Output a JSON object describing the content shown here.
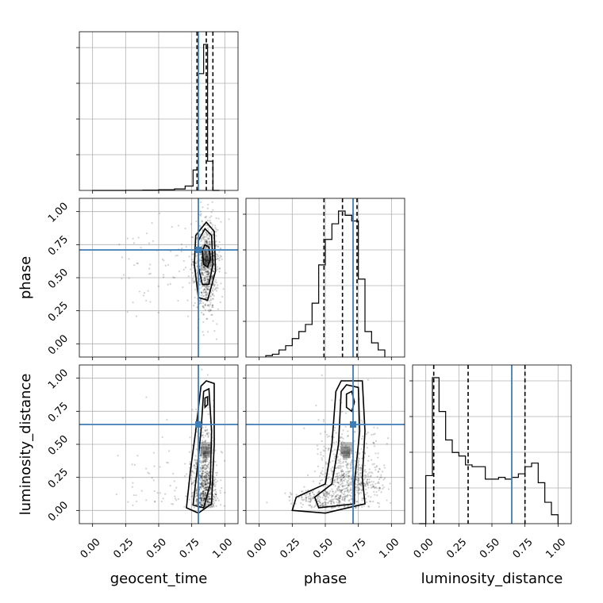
{
  "chart_data": {
    "type": "corner",
    "parameters": [
      "geocent_time",
      "phase",
      "luminosity_distance"
    ],
    "axis_range": [
      -0.1,
      1.1
    ],
    "tick_values": [
      0.0,
      0.25,
      0.5,
      0.75,
      1.0
    ],
    "tick_labels": [
      "0.00",
      "0.25",
      "0.50",
      "0.75",
      "1.00"
    ],
    "truth_color": "#3f7db5",
    "truths": {
      "geocent_time": 0.8,
      "phase": 0.71,
      "luminosity_distance": 0.65
    },
    "quantiles": {
      "geocent_time": [
        0.79,
        0.86,
        0.91
      ],
      "phase": [
        0.49,
        0.63,
        0.74
      ],
      "luminosity_distance": [
        0.06,
        0.32,
        0.75
      ]
    },
    "histograms": {
      "geocent_time": {
        "bin_edges": [
          0.0,
          0.25,
          0.38,
          0.5,
          0.62,
          0.7,
          0.76,
          0.8,
          0.84,
          0.87,
          0.91,
          0.96
        ],
        "counts": [
          0,
          1,
          2,
          5,
          10,
          30,
          140,
          800,
          1000,
          200,
          0
        ]
      },
      "phase": {
        "bin_edges": [
          0.05,
          0.1,
          0.15,
          0.2,
          0.25,
          0.3,
          0.35,
          0.4,
          0.45,
          0.5,
          0.55,
          0.6,
          0.65,
          0.7,
          0.75,
          0.8,
          0.85,
          0.9,
          0.95
        ],
        "counts": [
          1,
          2,
          5,
          8,
          13,
          18,
          23,
          38,
          65,
          83,
          94,
          103,
          100,
          96,
          55,
          18,
          10,
          5
        ]
      },
      "luminosity_distance": {
        "bin_edges": [
          -0.05,
          0.0,
          0.05,
          0.1,
          0.15,
          0.2,
          0.25,
          0.3,
          0.35,
          0.4,
          0.45,
          0.5,
          0.55,
          0.6,
          0.65,
          0.7,
          0.75,
          0.8,
          0.85,
          0.9,
          0.95,
          1.0
        ],
        "counts": [
          0,
          27,
          82,
          63,
          47,
          40,
          38,
          33,
          32,
          32,
          25,
          25,
          26,
          25,
          26,
          28,
          32,
          34,
          23,
          12,
          5
        ]
      }
    },
    "scatter_2d": [
      {
        "x": "geocent_time",
        "y": "phase",
        "center": [
          0.86,
          0.6
        ],
        "spread": [
          0.045,
          0.17
        ],
        "contour_levels": [
          {
            "label": "outer",
            "points": [
              [
                0.78,
                0.82
              ],
              [
                0.77,
                0.6
              ],
              [
                0.8,
                0.35
              ],
              [
                0.87,
                0.33
              ],
              [
                0.93,
                0.55
              ],
              [
                0.92,
                0.85
              ],
              [
                0.86,
                0.92
              ]
            ]
          },
          {
            "label": "middle",
            "points": [
              [
                0.8,
                0.78
              ],
              [
                0.8,
                0.58
              ],
              [
                0.83,
                0.45
              ],
              [
                0.88,
                0.45
              ],
              [
                0.91,
                0.6
              ],
              [
                0.9,
                0.82
              ],
              [
                0.85,
                0.87
              ]
            ]
          },
          {
            "label": "inner",
            "points": [
              [
                0.83,
                0.7
              ],
              [
                0.84,
                0.6
              ],
              [
                0.87,
                0.58
              ],
              [
                0.89,
                0.64
              ],
              [
                0.88,
                0.73
              ],
              [
                0.85,
                0.75
              ]
            ]
          }
        ]
      },
      {
        "x": "geocent_time",
        "y": "luminosity_distance",
        "center": [
          0.85,
          0.4
        ],
        "spread": [
          0.045,
          0.3
        ],
        "contour_levels": [
          {
            "label": "outer",
            "points": [
              [
                0.82,
                0.94
              ],
              [
                0.78,
                0.6
              ],
              [
                0.74,
                0.3
              ],
              [
                0.71,
                0.02
              ],
              [
                0.8,
                -0.02
              ],
              [
                0.9,
                0.05
              ],
              [
                0.92,
                0.5
              ],
              [
                0.92,
                0.96
              ],
              [
                0.86,
                0.98
              ]
            ]
          },
          {
            "label": "middle",
            "points": [
              [
                0.84,
                0.9
              ],
              [
                0.82,
                0.6
              ],
              [
                0.79,
                0.3
              ],
              [
                0.76,
                0.04
              ],
              [
                0.84,
                0.02
              ],
              [
                0.89,
                0.2
              ],
              [
                0.9,
                0.6
              ],
              [
                0.88,
                0.92
              ]
            ]
          },
          {
            "label": "inner",
            "points": [
              [
                0.85,
                0.85
              ],
              [
                0.85,
                0.78
              ],
              [
                0.87,
                0.8
              ],
              [
                0.87,
                0.86
              ]
            ]
          }
        ]
      },
      {
        "x": "phase",
        "y": "luminosity_distance",
        "center": [
          0.65,
          0.4
        ],
        "spread": [
          0.16,
          0.3
        ],
        "contour_levels": [
          {
            "label": "outer",
            "points": [
              [
                0.58,
                0.9
              ],
              [
                0.62,
                0.98
              ],
              [
                0.78,
                0.98
              ],
              [
                0.8,
                0.6
              ],
              [
                0.78,
                0.25
              ],
              [
                0.8,
                0.05
              ],
              [
                0.5,
                -0.02
              ],
              [
                0.25,
                0.0
              ],
              [
                0.28,
                0.1
              ],
              [
                0.5,
                0.2
              ],
              [
                0.55,
                0.5
              ]
            ]
          },
          {
            "label": "middle",
            "points": [
              [
                0.62,
                0.9
              ],
              [
                0.66,
                0.95
              ],
              [
                0.75,
                0.93
              ],
              [
                0.76,
                0.6
              ],
              [
                0.72,
                0.2
              ],
              [
                0.72,
                0.05
              ],
              [
                0.45,
                0.02
              ],
              [
                0.42,
                0.1
              ],
              [
                0.55,
                0.2
              ],
              [
                0.6,
                0.5
              ]
            ]
          },
          {
            "label": "inner",
            "points": [
              [
                0.66,
                0.88
              ],
              [
                0.7,
                0.9
              ],
              [
                0.72,
                0.82
              ],
              [
                0.7,
                0.75
              ],
              [
                0.66,
                0.78
              ]
            ]
          }
        ]
      }
    ]
  }
}
